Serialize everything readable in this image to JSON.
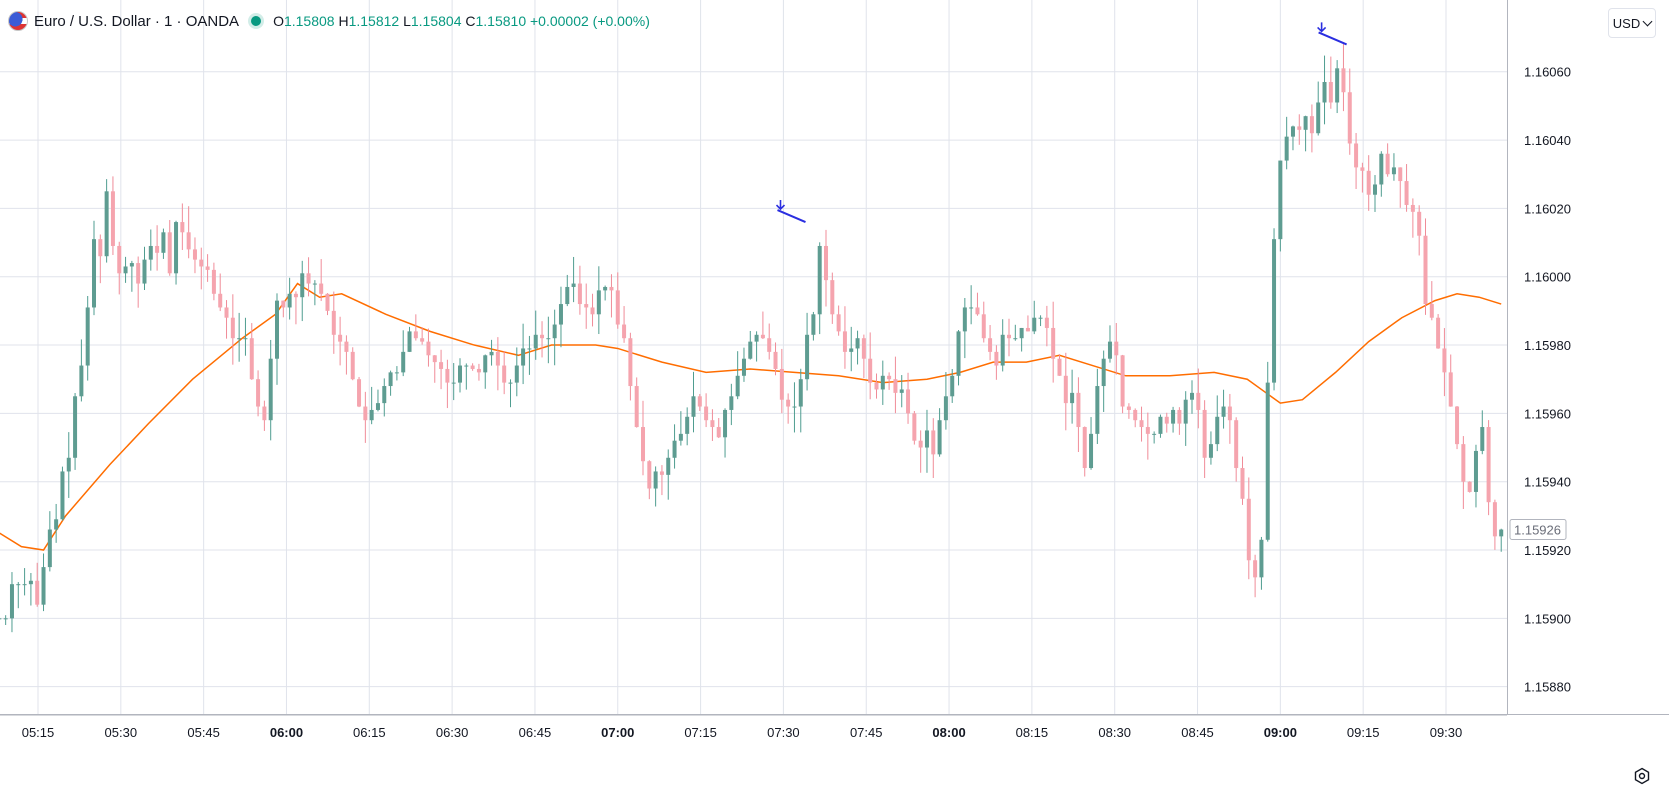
{
  "header": {
    "symbol": "Euro / U.S. Dollar · 1 · OANDA",
    "open_label": "O",
    "open": "1.15808",
    "high_label": "H",
    "high": "1.15812",
    "low_label": "L",
    "low": "1.15804",
    "close_label": "C",
    "close": "1.15810",
    "change": "+0.00002 (+0.00%)"
  },
  "toolbar": {
    "currency": "USD"
  },
  "colors": {
    "up": "#089981",
    "down": "#f23645",
    "ma": "#ff6d00",
    "marker": "#2a2ee0",
    "grid": "#e0e3eb"
  },
  "icons": {
    "flag": "eur-usd-flag-icon",
    "status": "market-status-dot-icon",
    "settings": "settings-gear-icon"
  },
  "chart_data": {
    "type": "candlestick",
    "x_axis": {
      "ticks": [
        "05:15",
        "05:30",
        "05:45",
        "06:00",
        "06:15",
        "06:30",
        "06:45",
        "07:00",
        "07:15",
        "07:30",
        "07:45",
        "08:00",
        "08:15",
        "08:30",
        "08:45",
        "09:00",
        "09:15",
        "09:30"
      ],
      "bold_ticks": [
        "06:00",
        "07:00",
        "08:00",
        "09:00"
      ],
      "start": "05:08",
      "end": "09:40",
      "interval": "1 minute"
    },
    "y_axis": {
      "ticks": [
        1.1588,
        1.159,
        1.1592,
        1.1594,
        1.1596,
        1.1598,
        1.16,
        1.1602,
        1.1604,
        1.1606
      ],
      "range": [
        1.15872,
        1.16081
      ]
    },
    "last_price": 1.15926,
    "grid": true,
    "markers": [
      {
        "time": "07:34",
        "price": 1.16016
      },
      {
        "time": "09:12",
        "price": 1.16068
      }
    ],
    "series": [
      {
        "type": "ohlc",
        "closes": [
          1.159,
          1.159,
          1.1591,
          1.1591,
          1.1591,
          1.15911,
          1.15904,
          1.15915,
          1.15926,
          1.15929,
          1.15943,
          1.15947,
          1.15965,
          1.15974,
          1.15991,
          1.16011,
          1.16006,
          1.16025,
          1.16009,
          1.16001,
          1.16003,
          1.16004,
          1.15998,
          1.16005,
          1.16009,
          1.16007,
          1.16013,
          1.16001,
          1.16016,
          1.16013,
          1.16008,
          1.16005,
          1.16003,
          1.16002,
          1.15995,
          1.15991,
          1.15988,
          1.15982,
          1.15982,
          1.15982,
          1.1597,
          1.15962,
          1.15958,
          1.15976,
          1.15993,
          1.15991,
          1.15995,
          1.15994,
          1.16001,
          1.15998,
          1.15998,
          1.15995,
          1.1599,
          1.15983,
          1.15981,
          1.15978,
          1.1597,
          1.15962,
          1.15958,
          1.15961,
          1.15963,
          1.15968,
          1.15972,
          1.15972,
          1.15978,
          1.15984,
          1.15982,
          1.15981,
          1.15977,
          1.15975,
          1.15973,
          1.15969,
          1.15969,
          1.15974,
          1.15974,
          1.15973,
          1.15972,
          1.15977,
          1.15978,
          1.15974,
          1.15969,
          1.15969,
          1.15974,
          1.15979,
          1.15979,
          1.15983,
          1.15982,
          1.15982,
          1.15986,
          1.15992,
          1.15997,
          1.15998,
          1.15992,
          1.15991,
          1.15989,
          1.15996,
          1.15997,
          1.15996,
          1.15986,
          1.15982,
          1.15968,
          1.15956,
          1.15946,
          1.15938,
          1.15943,
          1.15942,
          1.15947,
          1.15952,
          1.15954,
          1.15959,
          1.15965,
          1.15962,
          1.15958,
          1.15956,
          1.15953,
          1.15961,
          1.15965,
          1.15971,
          1.15976,
          1.15981,
          1.15983,
          1.15982,
          1.15978,
          1.15973,
          1.15964,
          1.15962,
          1.15962,
          1.1597,
          1.15983,
          1.15989,
          1.16009,
          1.15999,
          1.15989,
          1.15984,
          1.15978,
          1.15979,
          1.15982,
          1.15976,
          1.15969,
          1.15967,
          1.15971,
          1.1597,
          1.15966,
          1.15967,
          1.1596,
          1.15952,
          1.1595,
          1.15955,
          1.15948,
          1.15958,
          1.15965,
          1.15971,
          1.15984,
          1.15991,
          1.15991,
          1.15989,
          1.15982,
          1.15978,
          1.15974,
          1.15983,
          1.15982,
          1.15982,
          1.15985,
          1.15984,
          1.15988,
          1.15988,
          1.15985,
          1.15976,
          1.15971,
          1.15963,
          1.15966,
          1.15956,
          1.15944,
          1.15954,
          1.15968,
          1.15976,
          1.15981,
          1.15977,
          1.15962,
          1.15961,
          1.15958,
          1.15956,
          1.15954,
          1.15954,
          1.15959,
          1.15957,
          1.15961,
          1.15957,
          1.15964,
          1.15966,
          1.15961,
          1.15947,
          1.15951,
          1.15959,
          1.15962,
          1.15958,
          1.15944,
          1.15935,
          1.15917,
          1.15912,
          1.15923,
          1.15969,
          1.16011,
          1.16034,
          1.16041,
          1.16044,
          1.16043,
          1.16047,
          1.16042,
          1.16051,
          1.16057,
          1.16051,
          1.16061,
          1.16054,
          1.16039,
          1.16032,
          1.16031,
          1.16024,
          1.16027,
          1.16036,
          1.1603,
          1.16032,
          1.16028,
          1.16021,
          1.16019,
          1.16012,
          1.15992,
          1.15988,
          1.15979,
          1.15972,
          1.15962,
          1.15951,
          1.1594,
          1.15937,
          1.15949,
          1.15956,
          1.15934,
          1.15924,
          1.15926
        ],
        "opens": [
          1.159,
          1.159,
          1.159,
          1.1591,
          1.1591,
          1.1591,
          1.15911,
          1.15904,
          1.15915,
          1.15926,
          1.15929,
          1.15943,
          1.15947,
          1.15965,
          1.15974,
          1.15991,
          1.16011,
          1.16006,
          1.16025,
          1.16009,
          1.16001,
          1.16003,
          1.16004,
          1.15998,
          1.16005,
          1.16009,
          1.16007,
          1.16013,
          1.16001,
          1.16016,
          1.16013,
          1.16008,
          1.16005,
          1.16003,
          1.16002,
          1.15995,
          1.15991,
          1.15988,
          1.15982,
          1.15982,
          1.15982,
          1.1597,
          1.15962,
          1.15958,
          1.15976,
          1.15993,
          1.15991,
          1.15995,
          1.15994,
          1.16001,
          1.15998,
          1.15998,
          1.15995,
          1.1599,
          1.15983,
          1.15981,
          1.15978,
          1.1597,
          1.15962,
          1.15958,
          1.15961,
          1.15963,
          1.15968,
          1.15972,
          1.15972,
          1.15978,
          1.15984,
          1.15982,
          1.15981,
          1.15977,
          1.15975,
          1.15973,
          1.15969,
          1.15969,
          1.15974,
          1.15974,
          1.15973,
          1.15972,
          1.15977,
          1.15978,
          1.15974,
          1.15969,
          1.15969,
          1.15974,
          1.15979,
          1.15979,
          1.15983,
          1.15982,
          1.15982,
          1.15986,
          1.15992,
          1.15997,
          1.15998,
          1.15992,
          1.15991,
          1.15989,
          1.15996,
          1.15997,
          1.15996,
          1.15986,
          1.15982,
          1.15968,
          1.15956,
          1.15946,
          1.15938,
          1.15943,
          1.15942,
          1.15947,
          1.15952,
          1.15954,
          1.15959,
          1.15965,
          1.15962,
          1.15958,
          1.15956,
          1.15953,
          1.15961,
          1.15965,
          1.15971,
          1.15976,
          1.15981,
          1.15983,
          1.15982,
          1.15978,
          1.15973,
          1.15964,
          1.15962,
          1.15962,
          1.1597,
          1.15983,
          1.15989,
          1.16009,
          1.15999,
          1.15989,
          1.15984,
          1.15978,
          1.15979,
          1.15982,
          1.15976,
          1.15969,
          1.15967,
          1.15971,
          1.1597,
          1.15966,
          1.15967,
          1.1596,
          1.15952,
          1.1595,
          1.15955,
          1.15948,
          1.15958,
          1.15965,
          1.15971,
          1.15984,
          1.15991,
          1.15991,
          1.15989,
          1.15982,
          1.15978,
          1.15974,
          1.15983,
          1.15982,
          1.15982,
          1.15985,
          1.15984,
          1.15988,
          1.15988,
          1.15985,
          1.15976,
          1.15971,
          1.15963,
          1.15966,
          1.15956,
          1.15944,
          1.15954,
          1.15968,
          1.15976,
          1.15981,
          1.15977,
          1.15962,
          1.15961,
          1.15958,
          1.15956,
          1.15954,
          1.15954,
          1.15959,
          1.15957,
          1.15961,
          1.15957,
          1.15964,
          1.15966,
          1.15961,
          1.15947,
          1.15951,
          1.15959,
          1.15962,
          1.15958,
          1.15944,
          1.15935,
          1.15917,
          1.15912,
          1.15923,
          1.15969,
          1.16011,
          1.16034,
          1.16041,
          1.16044,
          1.16043,
          1.16047,
          1.16042,
          1.16051,
          1.16057,
          1.16051,
          1.16061,
          1.16054,
          1.16039,
          1.16032,
          1.16031,
          1.16024,
          1.16027,
          1.16036,
          1.1603,
          1.16032,
          1.16028,
          1.16021,
          1.16019,
          1.16012,
          1.15992,
          1.15988,
          1.15979,
          1.15972,
          1.15962,
          1.15951,
          1.1594,
          1.15937,
          1.15949,
          1.15956,
          1.15934,
          1.15924
        ]
      },
      {
        "type": "moving_average",
        "points": [
          [
            "05:08",
            1.15925
          ],
          [
            "05:12",
            1.15921
          ],
          [
            "05:16",
            1.1592
          ],
          [
            "05:20",
            1.1593
          ],
          [
            "05:28",
            1.15945
          ],
          [
            "05:35",
            1.15957
          ],
          [
            "05:43",
            1.1597
          ],
          [
            "05:52",
            1.15982
          ],
          [
            "05:58",
            1.15989
          ],
          [
            "06:02",
            1.15998
          ],
          [
            "06:06",
            1.15994
          ],
          [
            "06:10",
            1.15995
          ],
          [
            "06:18",
            1.15989
          ],
          [
            "06:26",
            1.15984
          ],
          [
            "06:34",
            1.1598
          ],
          [
            "06:42",
            1.15977
          ],
          [
            "06:48",
            1.1598
          ],
          [
            "06:56",
            1.1598
          ],
          [
            "07:00",
            1.15979
          ],
          [
            "07:08",
            1.15975
          ],
          [
            "07:16",
            1.15972
          ],
          [
            "07:24",
            1.15973
          ],
          [
            "07:32",
            1.15972
          ],
          [
            "07:40",
            1.15971
          ],
          [
            "07:48",
            1.15969
          ],
          [
            "07:56",
            1.1597
          ],
          [
            "08:02",
            1.15972
          ],
          [
            "08:08",
            1.15975
          ],
          [
            "08:14",
            1.15975
          ],
          [
            "08:20",
            1.15977
          ],
          [
            "08:26",
            1.15974
          ],
          [
            "08:32",
            1.15971
          ],
          [
            "08:40",
            1.15971
          ],
          [
            "08:48",
            1.15972
          ],
          [
            "08:54",
            1.1597
          ],
          [
            "09:00",
            1.15963
          ],
          [
            "09:04",
            1.15964
          ],
          [
            "09:10",
            1.15972
          ],
          [
            "09:16",
            1.15981
          ],
          [
            "09:22",
            1.15988
          ],
          [
            "09:28",
            1.15993
          ],
          [
            "09:32",
            1.15995
          ],
          [
            "09:36",
            1.15994
          ],
          [
            "09:40",
            1.15992
          ]
        ]
      }
    ]
  }
}
